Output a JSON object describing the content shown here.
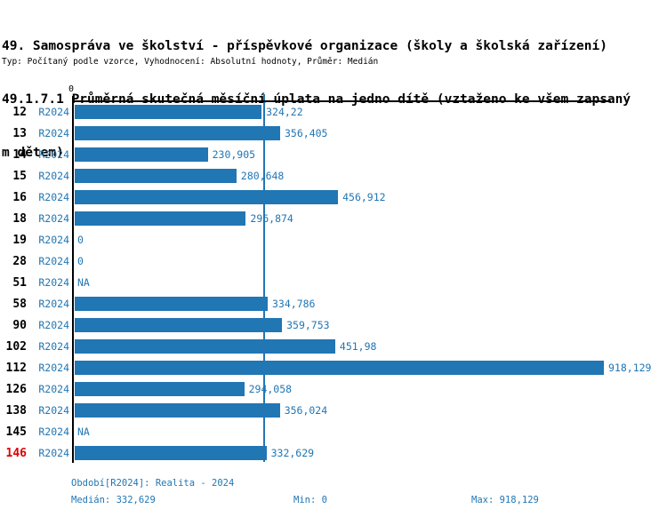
{
  "header": {
    "title_lines": [
      "49. Samospráva ve školství - příspěvkové organizace (školy a školská zařízení)",
      "49.1.7.1 Průměrná skutečná měsíční úplata na jedno dítě (vztaženo ke všem zapsaný",
      "m dětem)"
    ],
    "meta": "Typ: Počítaný podle vzorce, Vyhodnocení: Absolutní hodnoty, Průměr: Medián"
  },
  "axis": {
    "zero_label": "0"
  },
  "rows": [
    {
      "id": "12",
      "period": "R2024",
      "value": 324.22,
      "display": "324,22",
      "highlight": false
    },
    {
      "id": "13",
      "period": "R2024",
      "value": 356.405,
      "display": "356,405",
      "highlight": false
    },
    {
      "id": "14",
      "period": "R2024",
      "value": 230.905,
      "display": "230,905",
      "highlight": false
    },
    {
      "id": "15",
      "period": "R2024",
      "value": 280.648,
      "display": "280,648",
      "highlight": false
    },
    {
      "id": "16",
      "period": "R2024",
      "value": 456.912,
      "display": "456,912",
      "highlight": false
    },
    {
      "id": "18",
      "period": "R2024",
      "value": 296.874,
      "display": "296,874",
      "highlight": false
    },
    {
      "id": "19",
      "period": "R2024",
      "value": 0,
      "display": "0",
      "highlight": false
    },
    {
      "id": "28",
      "period": "R2024",
      "value": 0,
      "display": "0",
      "highlight": false
    },
    {
      "id": "51",
      "period": "R2024",
      "value": null,
      "display": "NA",
      "highlight": false
    },
    {
      "id": "58",
      "period": "R2024",
      "value": 334.786,
      "display": "334,786",
      "highlight": false
    },
    {
      "id": "90",
      "period": "R2024",
      "value": 359.753,
      "display": "359,753",
      "highlight": false
    },
    {
      "id": "102",
      "period": "R2024",
      "value": 451.98,
      "display": "451,98",
      "highlight": false
    },
    {
      "id": "112",
      "period": "R2024",
      "value": 918.129,
      "display": "918,129",
      "highlight": false
    },
    {
      "id": "126",
      "period": "R2024",
      "value": 294.058,
      "display": "294,058",
      "highlight": false
    },
    {
      "id": "138",
      "period": "R2024",
      "value": 356.024,
      "display": "356,024",
      "highlight": false
    },
    {
      "id": "145",
      "period": "R2024",
      "value": null,
      "display": "NA",
      "highlight": false
    },
    {
      "id": "146",
      "period": "R2024",
      "value": 332.629,
      "display": "332,629",
      "highlight": true
    }
  ],
  "footer": {
    "period_info": "Období[R2024]: Realita - 2024",
    "median": "Medián: 332,629",
    "min": "Min: 0",
    "max": "Max: 918,129"
  },
  "colors": {
    "bar_blue": "#2176b4",
    "text_blue": "#2176b4",
    "highlight_red": "#dd0000",
    "axis_black": "#000000"
  },
  "chart_data": {
    "type": "bar",
    "orientation": "horizontal",
    "title": "49. Samospráva ve školství - příspěvkové organizace (školy a školská zařízení)",
    "subtitle": "49.1.7.1 Průměrná skutečná měsíční úplata na jedno dítě (vztaženo ke všem zapsaným dětem)",
    "meta": "Typ: Počítaný podle vzorce, Vyhodnocení: Absolutní hodnoty, Průměr: Medián",
    "categories": [
      "12",
      "13",
      "14",
      "15",
      "16",
      "18",
      "19",
      "28",
      "51",
      "58",
      "90",
      "102",
      "112",
      "126",
      "138",
      "145",
      "146"
    ],
    "series": [
      {
        "name": "R2024",
        "values": [
          324.22,
          356.405,
          230.905,
          280.648,
          456.912,
          296.874,
          0,
          0,
          null,
          334.786,
          359.753,
          451.98,
          918.129,
          294.058,
          356.024,
          null,
          332.629
        ]
      }
    ],
    "value_labels": [
      "324,22",
      "356,405",
      "230,905",
      "280,648",
      "456,912",
      "296,874",
      "0",
      "0",
      "NA",
      "334,786",
      "359,753",
      "451,98",
      "918,129",
      "294,058",
      "356,024",
      "NA",
      "332,629"
    ],
    "xmin": 0,
    "xmax": 918.129,
    "x_tick_labels": [
      "0"
    ],
    "median_line_value": 332.629,
    "median": 332.629,
    "min": 0,
    "max": 918.129,
    "grid": false,
    "legend": false,
    "highlighted_category": "146"
  }
}
